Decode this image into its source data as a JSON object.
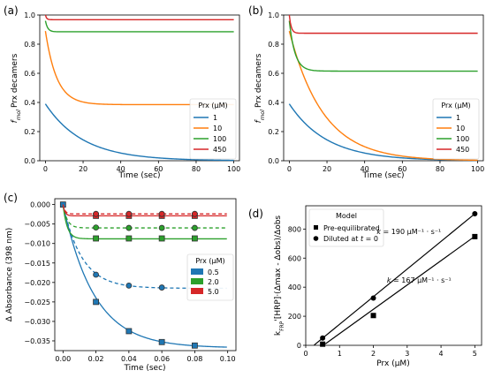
{
  "panel_labels": [
    "(a)",
    "(b)",
    "(c)",
    "(d)"
  ],
  "chart_data": [
    {
      "type": "line",
      "xlabel": "Time (sec)",
      "ylabel": "f_mol Prx decamers",
      "ylabel_sub": "mol",
      "ylabel_main": "Prx decamers",
      "xlim": [
        -3,
        103
      ],
      "ylim": [
        0,
        1.0
      ],
      "xticks": [
        0,
        20,
        40,
        60,
        80,
        100
      ],
      "yticks": [
        0.0,
        0.2,
        0.4,
        0.6,
        0.8,
        1.0
      ],
      "legend_title": "Prx (μM)",
      "legend_position": "right",
      "series": [
        {
          "name": "1",
          "color": "#1f77b4",
          "y0": 0.39,
          "yinf": 0.0,
          "tau": 20
        },
        {
          "name": "10",
          "color": "#ff7f0e",
          "y0": 0.89,
          "yinf": 0.385,
          "tau": 6
        },
        {
          "name": "100",
          "color": "#2ca02c",
          "y0": 0.96,
          "yinf": 0.885,
          "tau": 1.2
        },
        {
          "name": "450",
          "color": "#d62728",
          "y0": 1.0,
          "yinf": 0.968,
          "tau": 0.6
        }
      ]
    },
    {
      "type": "line",
      "xlabel": "Time (sec)",
      "ylabel": "f_mol Prx decamers",
      "ylabel_sub": "mol",
      "ylabel_main": "Prx decamers",
      "xlim": [
        -3,
        103
      ],
      "ylim": [
        0,
        1.0
      ],
      "xticks": [
        0,
        20,
        40,
        60,
        80,
        100
      ],
      "yticks": [
        0.0,
        0.2,
        0.4,
        0.6,
        0.8,
        1.0
      ],
      "legend_title": "Prx (μM)",
      "legend_position": "lower-right",
      "series": [
        {
          "name": "1",
          "color": "#1f77b4",
          "y0": 0.39,
          "yinf": 0.0,
          "tau": 20
        },
        {
          "name": "10",
          "color": "#ff7f0e",
          "y0": 0.89,
          "yinf": 0.0,
          "tau": 18
        },
        {
          "name": "100",
          "color": "#2ca02c",
          "y0": 0.96,
          "yinf": 0.615,
          "tau": 3
        },
        {
          "name": "450",
          "color": "#d62728",
          "y0": 1.0,
          "yinf": 0.875,
          "tau": 1
        }
      ]
    },
    {
      "type": "scatter",
      "xlabel": "Time (sec)",
      "ylabel": "Δ Absorbance (398 nm)",
      "xlim": [
        -0.005,
        0.105
      ],
      "ylim": [
        -0.0375,
        0.0015
      ],
      "xticks": [
        0.0,
        0.02,
        0.04,
        0.06,
        0.08,
        0.1
      ],
      "xtick_labels": [
        "0.00",
        "0.02",
        "0.04",
        "0.06",
        "0.08",
        "0.10"
      ],
      "yticks": [
        0.0,
        -0.005,
        -0.01,
        -0.015,
        -0.02,
        -0.025,
        -0.03,
        -0.035
      ],
      "ytick_labels": [
        "0.000",
        "−0.005",
        "−0.010",
        "−0.015",
        "−0.020",
        "−0.025",
        "−0.030",
        "−0.035"
      ],
      "legend_title": "Prx (μM)",
      "legend_position": "right",
      "series": [
        {
          "name": "0.5",
          "color": "#1f77b4",
          "square_points": {
            "x": [
              0.0,
              0.02,
              0.04,
              0.06,
              0.08
            ],
            "y": [
              0.0,
              -0.025,
              -0.0325,
              -0.0353,
              -0.0362
            ]
          },
          "circle_points": {
            "x": [
              0.02,
              0.04,
              0.06
            ],
            "y": [
              -0.018,
              -0.0208,
              -0.0213
            ]
          },
          "solid_fit": {
            "yinf": -0.0368,
            "tau": 0.019
          },
          "dashed_fit": {
            "yinf": -0.0215,
            "tau": 0.0115
          }
        },
        {
          "name": "2.0",
          "color": "#2ca02c",
          "square_points": {
            "x": [
              0.02,
              0.04,
              0.06,
              0.08
            ],
            "y": [
              -0.0087,
              -0.0087,
              -0.0087,
              -0.0087
            ]
          },
          "circle_points": {
            "x": [
              0.02,
              0.04,
              0.06,
              0.08
            ],
            "y": [
              -0.0059,
              -0.006,
              -0.006,
              -0.006
            ]
          },
          "solid_fit": {
            "yinf": -0.0088,
            "tau": 0.0025
          },
          "dashed_fit": {
            "yinf": -0.006,
            "tau": 0.0025
          }
        },
        {
          "name": "5.0",
          "color": "#d62728",
          "square_points": {
            "x": [
              0.02,
              0.04,
              0.06,
              0.08
            ],
            "y": [
              -0.0029,
              -0.0029,
              -0.0029,
              -0.0029
            ]
          },
          "circle_points": {
            "x": [
              0.02,
              0.04,
              0.06,
              0.08
            ],
            "y": [
              -0.0024,
              -0.0024,
              -0.0024,
              -0.0024
            ]
          },
          "solid_fit": {
            "yinf": -0.0029,
            "tau": 0.0012
          },
          "dashed_fit": {
            "yinf": -0.0024,
            "tau": 0.0012
          }
        }
      ]
    },
    {
      "type": "scatter",
      "xlabel": "Prx (μM)",
      "ylabel": "k_FRP'[HRP]·(Δmax - Δobs)/Δobs",
      "ylabel_sub": "FRP",
      "ylabel_pre": "k",
      "ylabel_post": "'[HRP]·(Δmax - Δobs)/Δobs",
      "xlim": [
        0,
        5.2
      ],
      "ylim": [
        0,
        960
      ],
      "xticks": [
        0,
        1,
        2,
        3,
        4,
        5
      ],
      "yticks": [
        0,
        200,
        400,
        600,
        800
      ],
      "legend_title": "Model",
      "legend_position": "top-left",
      "series": [
        {
          "name": "Pre-equilibrated",
          "marker": "square",
          "x": [
            0.5,
            2.0,
            5.0
          ],
          "y": [
            8,
            205,
            748
          ],
          "line": {
            "x": [
              0.58,
              5.0
            ],
            "y": [
              10,
              750
            ]
          }
        },
        {
          "name": "Diluted at t = 0",
          "name_pre": "Diluted at ",
          "name_italic": "t",
          "name_post": " = 0",
          "marker": "circle",
          "x": [
            0.5,
            2.0,
            5.0
          ],
          "y": [
            50,
            325,
            905
          ],
          "line": {
            "x": [
              0.25,
              5.0
            ],
            "y": [
              2,
              905
            ]
          }
        }
      ],
      "annotations": [
        {
          "text_k": "k",
          "text_rest": " = 190 μM⁻¹ · s⁻¹",
          "x": 2.1,
          "y": 765
        },
        {
          "text_k": "k",
          "text_rest": " = 167 μM⁻¹ · s⁻¹",
          "x": 2.4,
          "y": 430
        }
      ]
    }
  ]
}
